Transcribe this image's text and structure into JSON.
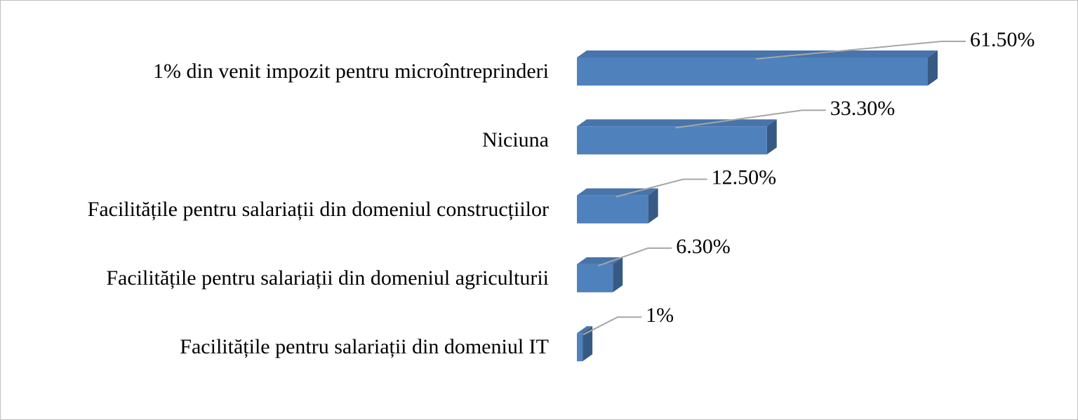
{
  "chart_data": {
    "type": "bar3d-horizontal",
    "categories": [
      "1% din venit impozit pentru microîntreprinderi",
      "Niciuna",
      "Facilitățile pentru salariații din domeniul construcțiilor",
      "Facilitățile pentru salariații din domeniul agriculturii",
      "Facilitățile pentru salariații din domeniul IT"
    ],
    "values": [
      61.5,
      33.3,
      12.5,
      6.3,
      1
    ],
    "value_labels": [
      "61.50%",
      "33.30%",
      "12.50%",
      "6.30%",
      "1%"
    ],
    "color": "#4f81bd"
  }
}
